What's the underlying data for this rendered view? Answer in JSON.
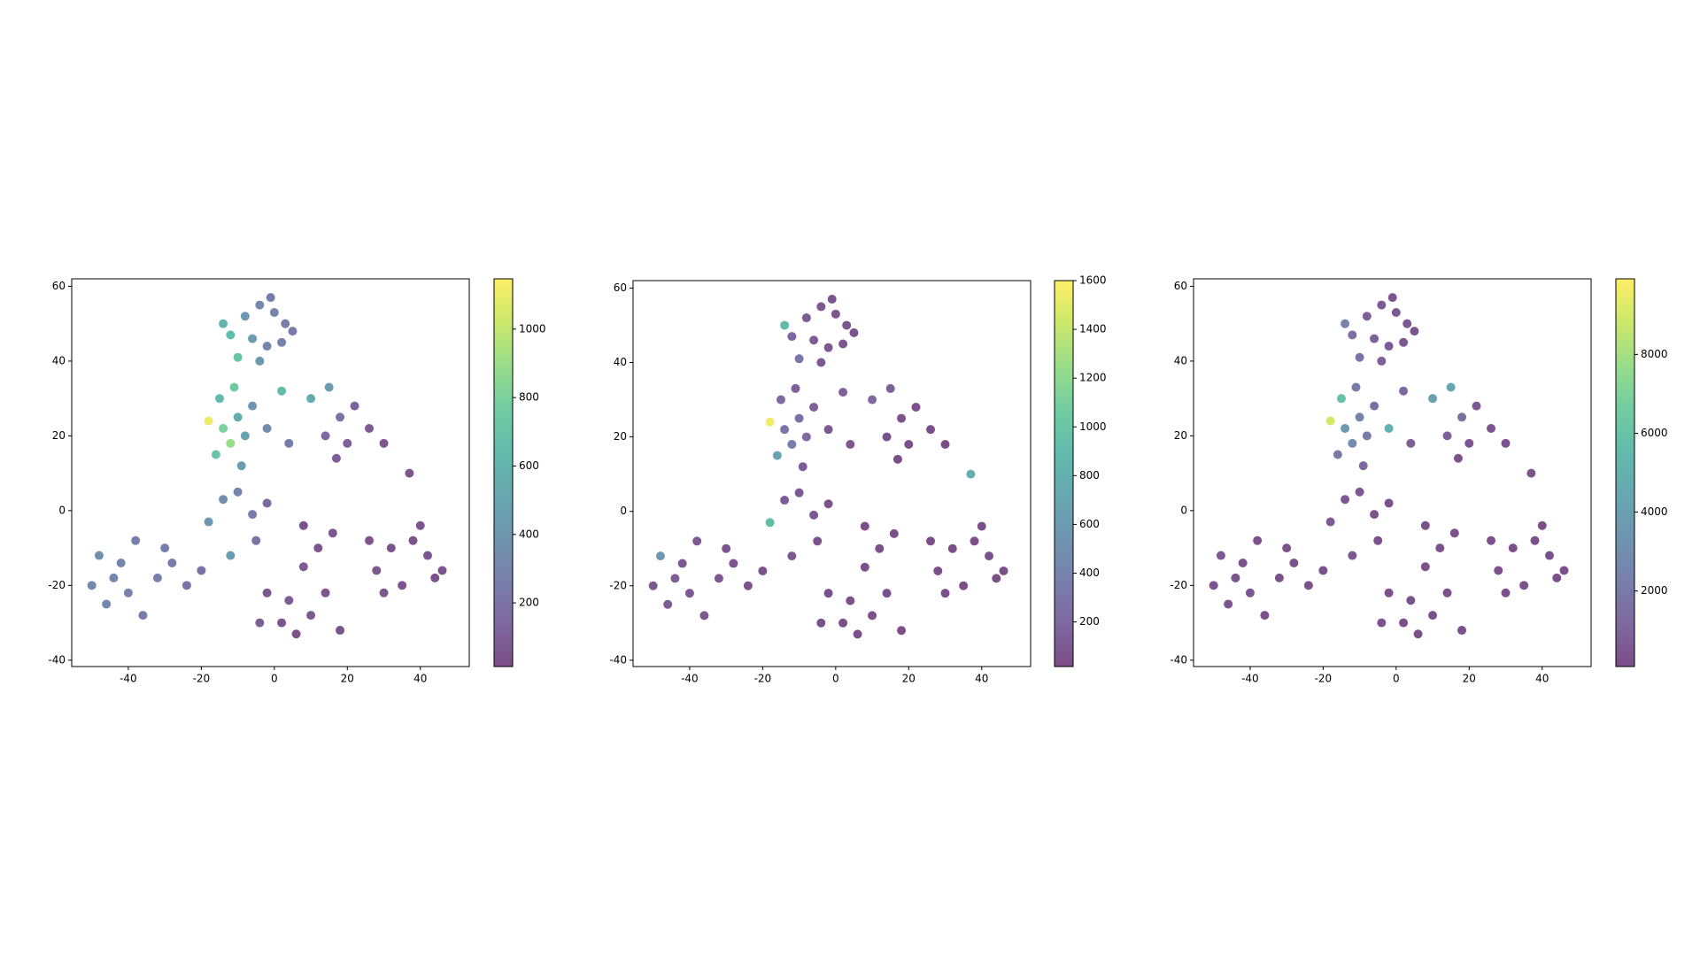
{
  "chart_data": [
    {
      "type": "scatter",
      "colormap": "viridis",
      "alpha": 0.7,
      "x": [
        -8,
        -4,
        0,
        3,
        -12,
        -6,
        -2,
        2,
        5,
        -10,
        -4,
        -14,
        -1,
        -15,
        -11,
        -18,
        -14,
        -10,
        -16,
        -12,
        -8,
        -6,
        -9,
        -2,
        2,
        4,
        10,
        15,
        18,
        14,
        20,
        22,
        26,
        17,
        30,
        37,
        -14,
        -10,
        -6,
        -18,
        -2,
        -12,
        -5,
        -48,
        -44,
        -40,
        -46,
        -42,
        -38,
        -50,
        -36,
        -32,
        -28,
        -24,
        -30,
        -20,
        -2,
        2,
        6,
        10,
        14,
        4,
        -4,
        12,
        8,
        16,
        8,
        18,
        26,
        32,
        28,
        35,
        38,
        42,
        44,
        40,
        46,
        30
      ],
      "values": [
        52,
        55,
        53,
        50,
        47,
        46,
        44,
        45,
        48,
        41,
        40,
        50,
        57,
        30,
        33,
        24,
        22,
        25,
        15,
        18,
        20,
        28,
        12,
        22,
        32,
        18,
        30,
        33,
        25,
        20,
        18,
        28,
        22,
        14,
        18,
        10,
        3,
        5,
        -1,
        -3,
        2,
        -12,
        -8,
        -12,
        -18,
        -22,
        -25,
        -14,
        -8,
        -20,
        -28,
        -18,
        -14,
        -20,
        -10,
        -16,
        -22,
        -30,
        -33,
        -28,
        -22,
        -24,
        -30,
        -10,
        -4,
        -6,
        -15,
        -32,
        -8,
        -10,
        -16,
        -20,
        -8,
        -12,
        -18,
        -4,
        -16,
        -22
      ],
      "color_values": [
        420,
        330,
        300,
        260,
        650,
        450,
        320,
        280,
        240,
        700,
        420,
        600,
        250,
        650,
        750,
        1100,
        800,
        550,
        700,
        900,
        500,
        400,
        450,
        350,
        650,
        250,
        550,
        450,
        200,
        150,
        100,
        120,
        80,
        90,
        60,
        50,
        350,
        300,
        250,
        400,
        150,
        450,
        200,
        350,
        300,
        280,
        320,
        300,
        260,
        330,
        250,
        270,
        230,
        200,
        250,
        180,
        60,
        50,
        40,
        70,
        60,
        80,
        90,
        50,
        40,
        60,
        70,
        40,
        50,
        40,
        60,
        50,
        45,
        55,
        40,
        50,
        45,
        60
      ],
      "xlim": [
        -55.5,
        53.4
      ],
      "ylim": [
        -41.7,
        62
      ],
      "xticks": [
        -40,
        -20,
        0,
        20,
        40
      ],
      "yticks": [
        -40,
        -20,
        0,
        20,
        40,
        60
      ],
      "clim": [
        14,
        1147
      ],
      "cticks": [
        200,
        400,
        600,
        800,
        1000
      ]
    },
    {
      "type": "scatter",
      "colormap": "viridis",
      "alpha": 0.7,
      "x": [
        -8,
        -4,
        0,
        3,
        -12,
        -6,
        -2,
        2,
        5,
        -10,
        -4,
        -14,
        -1,
        -15,
        -11,
        -18,
        -14,
        -10,
        -16,
        -12,
        -8,
        -6,
        -9,
        -2,
        2,
        4,
        10,
        15,
        18,
        14,
        20,
        22,
        26,
        17,
        30,
        37,
        -14,
        -10,
        -6,
        -18,
        -2,
        -12,
        -5,
        -48,
        -44,
        -40,
        -46,
        -42,
        -38,
        -50,
        -36,
        -32,
        -28,
        -24,
        -30,
        -20,
        -2,
        2,
        6,
        10,
        14,
        4,
        -4,
        12,
        8,
        16,
        8,
        18,
        26,
        32,
        28,
        35,
        38,
        42,
        44,
        40,
        46,
        30
      ],
      "values": [
        52,
        55,
        53,
        50,
        47,
        46,
        44,
        45,
        48,
        41,
        40,
        50,
        57,
        30,
        33,
        24,
        22,
        25,
        15,
        18,
        20,
        28,
        12,
        22,
        32,
        18,
        30,
        33,
        25,
        20,
        18,
        28,
        22,
        14,
        18,
        10,
        3,
        5,
        -1,
        -3,
        2,
        -12,
        -8,
        -12,
        -18,
        -22,
        -25,
        -14,
        -8,
        -20,
        -28,
        -18,
        -14,
        -20,
        -10,
        -16,
        -22,
        -30,
        -33,
        -28,
        -22,
        -24,
        -30,
        -10,
        -4,
        -6,
        -15,
        -32,
        -8,
        -10,
        -16,
        -20,
        -8,
        -12,
        -18,
        -4,
        -16,
        -22
      ],
      "color_values": [
        120,
        90,
        80,
        70,
        180,
        110,
        90,
        70,
        60,
        300,
        100,
        900,
        60,
        200,
        150,
        1550,
        300,
        250,
        700,
        350,
        200,
        150,
        120,
        100,
        150,
        80,
        200,
        150,
        60,
        50,
        40,
        40,
        30,
        30,
        25,
        800,
        120,
        100,
        80,
        900,
        50,
        100,
        60,
        600,
        120,
        100,
        110,
        100,
        90,
        100,
        80,
        80,
        70,
        60,
        70,
        60,
        40,
        30,
        30,
        40,
        35,
        45,
        50,
        30,
        30,
        35,
        40,
        30,
        30,
        30,
        35,
        30,
        30,
        35,
        30,
        30,
        30,
        35
      ],
      "xlim": [
        -55.5,
        53.4
      ],
      "ylim": [
        -41.7,
        62
      ],
      "xticks": [
        -40,
        -20,
        0,
        20,
        40
      ],
      "yticks": [
        -40,
        -20,
        0,
        20,
        40,
        60
      ],
      "clim": [
        17,
        1600
      ],
      "cticks": [
        200,
        400,
        600,
        800,
        1000,
        1200,
        1400,
        1600
      ]
    },
    {
      "type": "scatter",
      "colormap": "viridis",
      "alpha": 0.7,
      "x": [
        -8,
        -4,
        0,
        3,
        -12,
        -6,
        -2,
        2,
        5,
        -10,
        -4,
        -14,
        -1,
        -15,
        -11,
        -18,
        -14,
        -10,
        -16,
        -12,
        -8,
        -6,
        -9,
        -2,
        2,
        4,
        10,
        15,
        18,
        14,
        20,
        22,
        26,
        17,
        30,
        37,
        -14,
        -10,
        -6,
        -18,
        -2,
        -12,
        -5,
        -48,
        -44,
        -40,
        -46,
        -42,
        -38,
        -50,
        -36,
        -32,
        -28,
        -24,
        -30,
        -20,
        -2,
        2,
        6,
        10,
        14,
        4,
        -4,
        12,
        8,
        16,
        8,
        18,
        26,
        32,
        28,
        35,
        38,
        42,
        44,
        40,
        46,
        30
      ],
      "values": [
        52,
        55,
        53,
        50,
        47,
        46,
        44,
        45,
        48,
        41,
        40,
        50,
        57,
        30,
        33,
        24,
        22,
        25,
        15,
        18,
        20,
        28,
        12,
        22,
        32,
        18,
        30,
        33,
        25,
        20,
        18,
        28,
        22,
        14,
        18,
        10,
        3,
        5,
        -1,
        -3,
        2,
        -12,
        -8,
        -12,
        -18,
        -22,
        -25,
        -14,
        -8,
        -20,
        -28,
        -18,
        -14,
        -20,
        -10,
        -16,
        -22,
        -30,
        -33,
        -28,
        -22,
        -24,
        -30,
        -10,
        -4,
        -6,
        -15,
        -32,
        -8,
        -10,
        -16,
        -20,
        -8,
        -12,
        -18,
        -4,
        -16,
        -22
      ],
      "color_values": [
        900,
        700,
        600,
        500,
        1500,
        900,
        700,
        500,
        400,
        1800,
        800,
        2500,
        400,
        6000,
        2000,
        9000,
        3500,
        2500,
        2000,
        3000,
        2000,
        1500,
        1200,
        5000,
        1200,
        800,
        4000,
        4500,
        1500,
        900,
        500,
        600,
        400,
        300,
        300,
        400,
        600,
        500,
        400,
        700,
        300,
        600,
        300,
        500,
        400,
        400,
        400,
        300,
        300,
        400,
        300,
        300,
        300,
        300,
        300,
        300,
        250,
        200,
        200,
        250,
        250,
        300,
        300,
        250,
        200,
        250,
        300,
        200,
        250,
        200,
        250,
        200,
        200,
        250,
        200,
        200,
        200,
        250
      ],
      "xlim": [
        -55.5,
        53.4
      ],
      "ylim": [
        -41.7,
        62
      ],
      "xticks": [
        -40,
        -20,
        0,
        20,
        40
      ],
      "yticks": [
        -40,
        -20,
        0,
        20,
        40,
        60
      ],
      "clim": [
        83,
        9917
      ],
      "cticks": [
        2000,
        4000,
        6000,
        8000
      ]
    }
  ]
}
